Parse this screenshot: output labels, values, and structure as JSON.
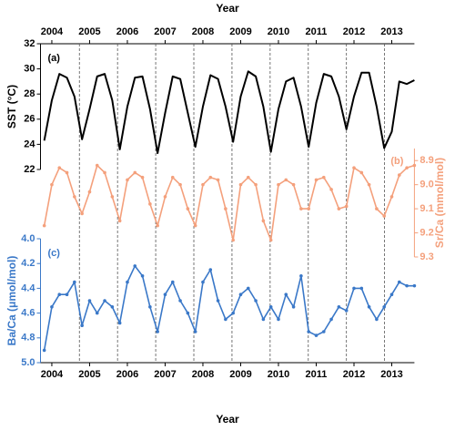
{
  "chart_data": {
    "type": "line",
    "xlabel": "Year",
    "xlim": [
      2003.7,
      2013.6
    ],
    "xticks": [
      2004,
      2005,
      2006,
      2007,
      2008,
      2009,
      2010,
      2011,
      2012,
      2013
    ],
    "vlines": [
      2004.73,
      2005.74,
      2006.75,
      2007.76,
      2008.77,
      2009.78,
      2010.79,
      2011.8,
      2012.81
    ],
    "x": [
      2003.8,
      2004.0,
      2004.2,
      2004.4,
      2004.6,
      2004.8,
      2005.0,
      2005.2,
      2005.4,
      2005.6,
      2005.8,
      2006.0,
      2006.2,
      2006.4,
      2006.6,
      2006.8,
      2007.0,
      2007.2,
      2007.4,
      2007.6,
      2007.8,
      2008.0,
      2008.2,
      2008.4,
      2008.6,
      2008.8,
      2009.0,
      2009.2,
      2009.4,
      2009.6,
      2009.8,
      2010.0,
      2010.2,
      2010.4,
      2010.6,
      2010.8,
      2011.0,
      2011.2,
      2011.4,
      2011.6,
      2011.8,
      2012.0,
      2012.2,
      2012.4,
      2012.6,
      2012.8,
      2013.0,
      2013.2,
      2013.4,
      2013.6
    ],
    "series": [
      {
        "label": "(a)",
        "ylabel": "SST (°C)",
        "color": "#000000",
        "axis": "left",
        "reverse": false,
        "markers": false,
        "ylim": [
          22,
          32
        ],
        "yticks": [
          22,
          24,
          26,
          28,
          30,
          32
        ],
        "values": [
          24.3,
          27.5,
          29.6,
          29.3,
          27.8,
          24.4,
          26.8,
          29.4,
          29.6,
          27.5,
          23.6,
          27.0,
          29.3,
          29.4,
          26.8,
          23.3,
          26.5,
          29.4,
          29.2,
          26.5,
          23.8,
          27.0,
          29.5,
          29.2,
          27.0,
          24.2,
          27.8,
          29.8,
          29.4,
          27.0,
          23.4,
          26.8,
          29.0,
          29.3,
          27.0,
          23.8,
          27.3,
          29.6,
          29.4,
          27.8,
          25.2,
          27.8,
          29.7,
          29.7,
          27.0,
          23.7,
          25.0,
          29.0,
          28.8,
          29.1
        ]
      },
      {
        "label": "(b)",
        "ylabel": "Sr/Ca (mmol/mol)",
        "color": "#f4a07c",
        "axis": "right",
        "reverse": true,
        "markers": true,
        "ylim": [
          8.85,
          9.3
        ],
        "yticks": [
          8.9,
          {
            "value": 9,
            "label": "9.0"
          },
          9.1,
          9.2,
          9.3
        ],
        "values": [
          9.17,
          9.0,
          8.93,
          8.95,
          9.05,
          9.12,
          9.03,
          8.92,
          8.95,
          9.05,
          9.15,
          8.98,
          8.95,
          8.97,
          9.08,
          9.17,
          9.05,
          8.97,
          9.0,
          9.1,
          9.17,
          9.0,
          8.97,
          8.98,
          9.1,
          9.23,
          9.0,
          8.97,
          9.0,
          9.15,
          9.23,
          9.0,
          8.98,
          9.0,
          9.1,
          9.1,
          8.98,
          8.97,
          9.02,
          9.1,
          9.09,
          8.93,
          8.95,
          9.0,
          9.1,
          9.13,
          9.05,
          8.96,
          8.93,
          8.92
        ]
      },
      {
        "label": "(c)",
        "ylabel": "Ba/Ca (μmol/mol)",
        "color": "#3a78c8",
        "axis": "left",
        "reverse": true,
        "markers": true,
        "ylim": [
          4,
          5
        ],
        "yticks": [
          {
            "value": 4,
            "label": "4.0"
          },
          4.2,
          4.4,
          4.6,
          4.8,
          {
            "value": 5,
            "label": "5.0"
          }
        ],
        "values": [
          4.9,
          4.55,
          4.45,
          4.45,
          4.35,
          4.7,
          4.5,
          4.6,
          4.5,
          4.55,
          4.68,
          4.35,
          4.22,
          4.3,
          4.55,
          4.75,
          4.45,
          4.35,
          4.5,
          4.6,
          4.75,
          4.35,
          4.25,
          4.5,
          4.65,
          4.6,
          4.45,
          4.4,
          4.5,
          4.65,
          4.55,
          4.65,
          4.45,
          4.55,
          4.3,
          4.75,
          4.78,
          4.75,
          4.65,
          4.55,
          4.58,
          4.4,
          4.4,
          4.55,
          4.65,
          4.55,
          4.45,
          4.35,
          4.38,
          4.38
        ]
      }
    ]
  }
}
